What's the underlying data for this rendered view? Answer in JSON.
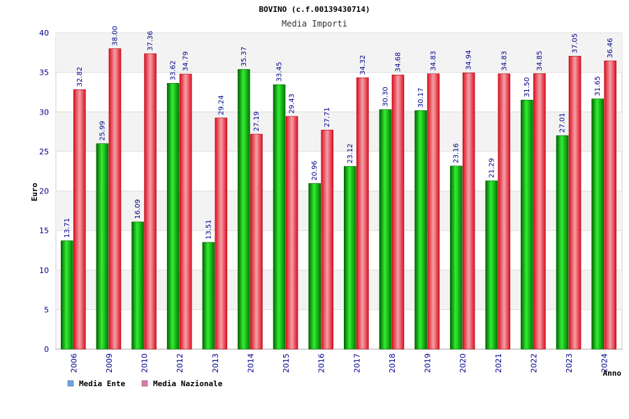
{
  "chart_data": {
    "type": "bar",
    "title": "BOVINO (c.f.00139430714)",
    "subtitle": "Media Importi",
    "xlabel": "Anno",
    "ylabel": "Euro",
    "ylim": [
      0,
      40
    ],
    "yticks": [
      0,
      5,
      10,
      15,
      20,
      25,
      30,
      35,
      40
    ],
    "grid": true,
    "legend_position": "bottom-left",
    "categories": [
      "2006",
      "2009",
      "2010",
      "2012",
      "2013",
      "2014",
      "2015",
      "2016",
      "2017",
      "2018",
      "2019",
      "2020",
      "2021",
      "2022",
      "2023",
      "2024"
    ],
    "series": [
      {
        "name": "Media Ente",
        "color": "#00aa00",
        "legend_color": "#6aa6e8",
        "values": [
          13.71,
          25.99,
          16.09,
          33.62,
          13.51,
          35.37,
          33.45,
          20.96,
          23.12,
          30.3,
          30.17,
          23.16,
          21.29,
          31.5,
          27.01,
          31.65
        ],
        "labels": [
          "13.71",
          "25.99",
          "16.09",
          "33.62",
          "13.51",
          "35.37",
          "33.45",
          "20.96",
          "23.12",
          "30.30",
          "30.17",
          "23.16",
          "21.29",
          "31.50",
          "27.01",
          "31.65"
        ]
      },
      {
        "name": "Media Nazionale",
        "color": "#e8202a",
        "legend_color": "#e07ab0",
        "values": [
          32.82,
          38.0,
          37.36,
          34.79,
          29.24,
          27.19,
          29.43,
          27.71,
          34.32,
          34.68,
          34.83,
          34.94,
          34.83,
          34.85,
          37.05,
          36.46
        ],
        "labels": [
          "32.82",
          "38.00",
          "37.36",
          "34.79",
          "29.24",
          "27.19",
          "29.43",
          "27.71",
          "34.32",
          "34.68",
          "34.83",
          "34.94",
          "34.83",
          "34.85",
          "37.05",
          "36.46"
        ]
      }
    ]
  }
}
